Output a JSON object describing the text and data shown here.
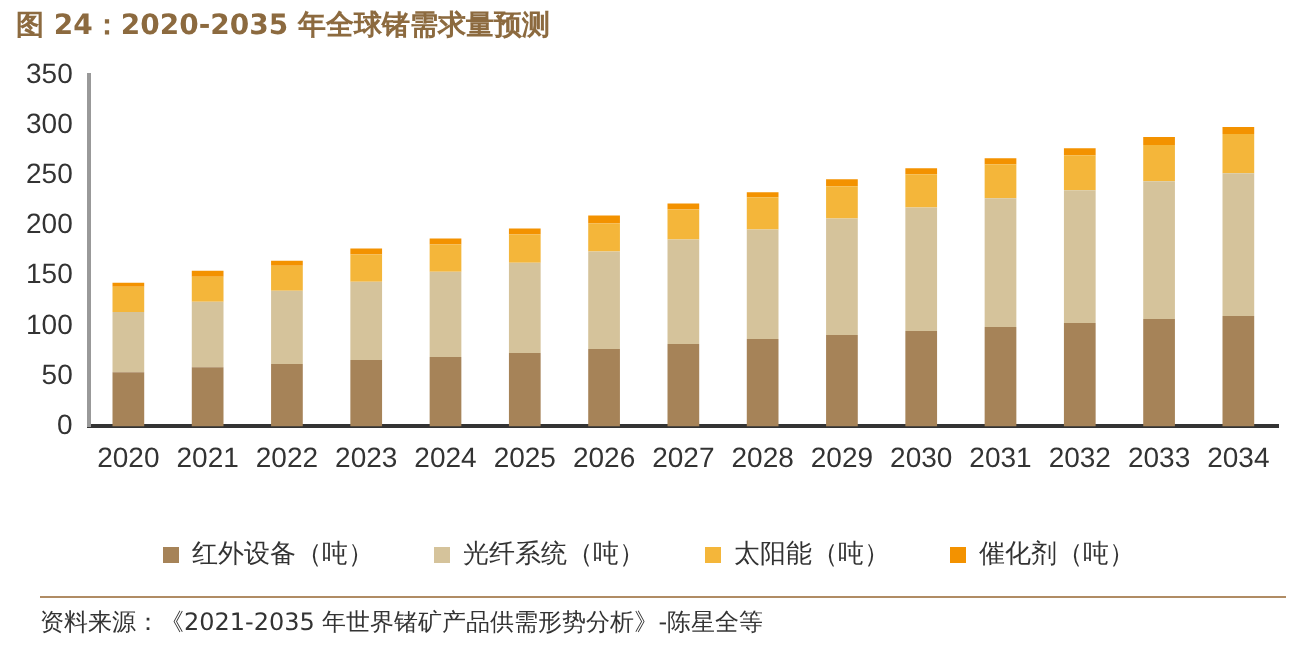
{
  "chart_data": {
    "type": "bar",
    "title": "图 24：2020-2035 年全球锗需求量预测",
    "categories": [
      "2020",
      "2021",
      "2022",
      "2023",
      "2024",
      "2025",
      "2026",
      "2027",
      "2028",
      "2029",
      "2030",
      "2031",
      "2032",
      "2033",
      "2034"
    ],
    "stacked": true,
    "series": [
      {
        "name": "红外设备（吨）",
        "color": "#a68358",
        "values": [
          54,
          59,
          62,
          66,
          69,
          73,
          77,
          82,
          87,
          91,
          95,
          99,
          103,
          107,
          110
        ]
      },
      {
        "name": "光纤系统（吨）",
        "color": "#d5c39b",
        "values": [
          60,
          65,
          73,
          78,
          85,
          90,
          97,
          104,
          109,
          116,
          123,
          128,
          132,
          137,
          142
        ]
      },
      {
        "name": "太阳能（吨）",
        "color": "#f4b63a",
        "values": [
          25,
          25,
          25,
          27,
          27,
          28,
          28,
          30,
          32,
          32,
          33,
          34,
          35,
          36,
          39
        ]
      },
      {
        "name": "催化剂（吨）",
        "color": "#f39200",
        "values": [
          4,
          6,
          5,
          6,
          6,
          6,
          8,
          6,
          5,
          7,
          6,
          6,
          7,
          8,
          7
        ]
      }
    ],
    "ylim": [
      0,
      350
    ],
    "yticks": [
      0,
      50,
      100,
      150,
      200,
      250,
      300,
      350
    ],
    "grid": false,
    "legend": "bottom",
    "annotations": [
      "资料来源：《2021-2035 年世界锗矿产品供需形势分析》-陈星全等"
    ]
  }
}
